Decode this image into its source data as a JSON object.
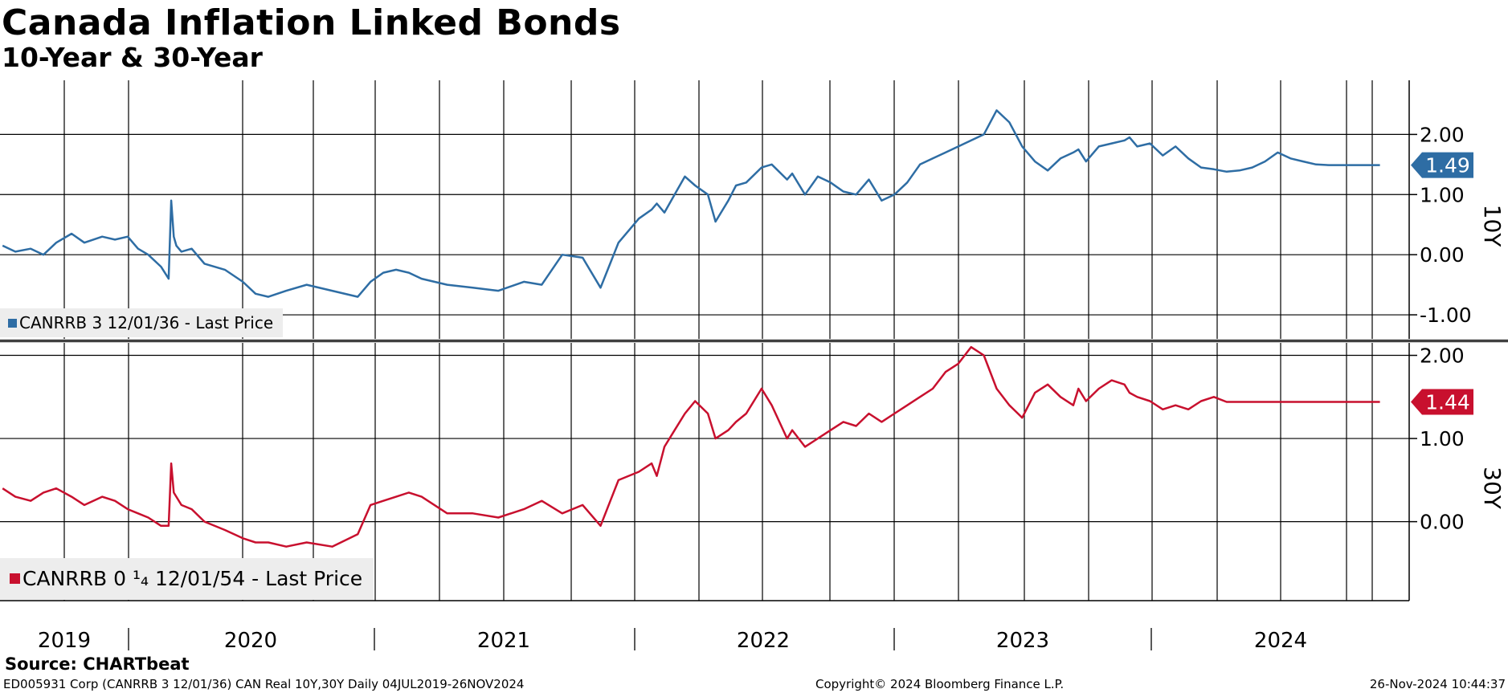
{
  "header": {
    "title": "Canada Inflation Linked Bonds",
    "subtitle": "10-Year & 30-Year"
  },
  "footer": {
    "source": "Source: CHARTbeat",
    "security": "ED005931 Corp (CANRRB 3 12/01/36) CAN Real 10Y,30Y  Daily 04JUL2019-26NOV2024",
    "copyright": "Copyright© 2024 Bloomberg Finance L.P.",
    "timestamp": "26-Nov-2024 10:44:37"
  },
  "chart_data": [
    {
      "type": "line",
      "panel": "10Y",
      "axis_label": "10Y",
      "legend": "CANRRB 3 12/01/36 - Last Price",
      "color": "#2e6da4",
      "last_value_label": "1.49",
      "ylim": [
        -1.4,
        2.9
      ],
      "yticks": [
        -1.0,
        0.0,
        1.0,
        2.0
      ],
      "ytick_labels": [
        "-1.00",
        "0.00",
        "1.00",
        "2.00"
      ],
      "xlim": [
        2019.5,
        2024.92
      ],
      "year_labels": [
        "2019",
        "2020",
        "2021",
        "2022",
        "2023",
        "2024"
      ],
      "x": [
        2019.51,
        2019.56,
        2019.62,
        2019.67,
        2019.72,
        2019.78,
        2019.83,
        2019.9,
        2019.95,
        2020.0,
        2020.04,
        2020.08,
        2020.13,
        2020.16,
        2020.17,
        2020.18,
        2020.19,
        2020.21,
        2020.25,
        2020.3,
        2020.38,
        2020.45,
        2020.5,
        2020.55,
        2020.62,
        2020.7,
        2020.8,
        2020.9,
        2020.95,
        2021.0,
        2021.05,
        2021.1,
        2021.15,
        2021.25,
        2021.35,
        2021.45,
        2021.55,
        2021.62,
        2021.7,
        2021.78,
        2021.85,
        2021.92,
        2022.0,
        2022.05,
        2022.07,
        2022.1,
        2022.14,
        2022.18,
        2022.22,
        2022.27,
        2022.3,
        2022.35,
        2022.38,
        2022.42,
        2022.48,
        2022.52,
        2022.58,
        2022.6,
        2022.65,
        2022.7,
        2022.75,
        2022.8,
        2022.85,
        2022.9,
        2022.95,
        2023.0,
        2023.05,
        2023.1,
        2023.15,
        2023.2,
        2023.25,
        2023.3,
        2023.35,
        2023.4,
        2023.45,
        2023.5,
        2023.55,
        2023.6,
        2023.65,
        2023.7,
        2023.72,
        2023.75,
        2023.8,
        2023.85,
        2023.9,
        2023.92,
        2023.95,
        2024.0,
        2024.05,
        2024.1,
        2024.15,
        2024.2,
        2024.25,
        2024.3,
        2024.35,
        2024.4,
        2024.45,
        2024.5,
        2024.55,
        2024.6,
        2024.65,
        2024.7,
        2024.75,
        2024.8,
        2024.85,
        2024.88,
        2024.9
      ],
      "y": [
        0.15,
        0.05,
        0.1,
        0.0,
        0.2,
        0.35,
        0.2,
        0.3,
        0.25,
        0.3,
        0.1,
        0.0,
        -0.2,
        -0.4,
        0.9,
        0.3,
        0.15,
        0.05,
        0.1,
        -0.15,
        -0.25,
        -0.45,
        -0.65,
        -0.7,
        -0.6,
        -0.5,
        -0.6,
        -0.7,
        -0.45,
        -0.3,
        -0.25,
        -0.3,
        -0.4,
        -0.5,
        -0.55,
        -0.6,
        -0.45,
        -0.5,
        0.0,
        -0.05,
        -0.55,
        0.2,
        0.6,
        0.75,
        0.85,
        0.7,
        1.0,
        1.3,
        1.15,
        1.0,
        0.55,
        0.9,
        1.15,
        1.2,
        1.45,
        1.5,
        1.25,
        1.35,
        1.0,
        1.3,
        1.2,
        1.05,
        1.0,
        1.25,
        0.9,
        1.0,
        1.2,
        1.5,
        1.6,
        1.7,
        1.8,
        1.9,
        2.0,
        2.4,
        2.2,
        1.8,
        1.55,
        1.4,
        1.6,
        1.7,
        1.75,
        1.55,
        1.8,
        1.85,
        1.9,
        1.95,
        1.8,
        1.85,
        1.65,
        1.8,
        1.6,
        1.45,
        1.42,
        1.38,
        1.4,
        1.45,
        1.55,
        1.7,
        1.6,
        1.55,
        1.5,
        1.49,
        1.49,
        1.49,
        1.49,
        1.49,
        1.49
      ]
    },
    {
      "type": "line",
      "panel": "30Y",
      "axis_label": "30Y",
      "legend": "CANRRB 0 ¼ 12/01/54 - Last Price",
      "legend_display": "CANRRB 0 ¹₄ 12/01/54 - Last Price",
      "color": "#c8102e",
      "last_value_label": "1.44",
      "ylim": [
        -0.95,
        2.15
      ],
      "yticks": [
        0.0,
        1.0,
        2.0
      ],
      "ytick_labels": [
        "0.00",
        "1.00",
        "2.00"
      ],
      "xlim": [
        2019.5,
        2024.92
      ],
      "x": [
        2019.51,
        2019.56,
        2019.62,
        2019.67,
        2019.72,
        2019.78,
        2019.83,
        2019.9,
        2019.95,
        2020.0,
        2020.04,
        2020.08,
        2020.13,
        2020.16,
        2020.17,
        2020.18,
        2020.19,
        2020.21,
        2020.25,
        2020.3,
        2020.38,
        2020.45,
        2020.5,
        2020.55,
        2020.62,
        2020.7,
        2020.8,
        2020.9,
        2020.95,
        2021.0,
        2021.05,
        2021.1,
        2021.15,
        2021.25,
        2021.35,
        2021.45,
        2021.55,
        2021.62,
        2021.7,
        2021.78,
        2021.85,
        2021.92,
        2022.0,
        2022.05,
        2022.07,
        2022.1,
        2022.14,
        2022.18,
        2022.22,
        2022.27,
        2022.3,
        2022.35,
        2022.38,
        2022.42,
        2022.48,
        2022.52,
        2022.58,
        2022.6,
        2022.65,
        2022.7,
        2022.75,
        2022.8,
        2022.85,
        2022.9,
        2022.95,
        2023.0,
        2023.05,
        2023.1,
        2023.15,
        2023.2,
        2023.25,
        2023.3,
        2023.35,
        2023.4,
        2023.45,
        2023.5,
        2023.55,
        2023.6,
        2023.65,
        2023.7,
        2023.72,
        2023.75,
        2023.8,
        2023.85,
        2023.9,
        2023.92,
        2023.95,
        2024.0,
        2024.05,
        2024.1,
        2024.15,
        2024.2,
        2024.25,
        2024.3,
        2024.35,
        2024.4,
        2024.45,
        2024.5,
        2024.55,
        2024.6,
        2024.65,
        2024.7,
        2024.75,
        2024.8,
        2024.85,
        2024.88,
        2024.9
      ],
      "y": [
        0.4,
        0.3,
        0.25,
        0.35,
        0.4,
        0.3,
        0.2,
        0.3,
        0.25,
        0.15,
        0.1,
        0.05,
        -0.05,
        -0.05,
        0.7,
        0.35,
        0.3,
        0.2,
        0.15,
        0.0,
        -0.1,
        -0.2,
        -0.25,
        -0.25,
        -0.3,
        -0.25,
        -0.3,
        -0.15,
        0.2,
        0.25,
        0.3,
        0.35,
        0.3,
        0.1,
        0.1,
        0.05,
        0.15,
        0.25,
        0.1,
        0.2,
        -0.05,
        0.5,
        0.6,
        0.7,
        0.55,
        0.9,
        1.1,
        1.3,
        1.45,
        1.3,
        1.0,
        1.1,
        1.2,
        1.3,
        1.6,
        1.4,
        1.0,
        1.1,
        0.9,
        1.0,
        1.1,
        1.2,
        1.15,
        1.3,
        1.2,
        1.3,
        1.4,
        1.5,
        1.6,
        1.8,
        1.9,
        2.1,
        2.0,
        1.6,
        1.4,
        1.25,
        1.55,
        1.65,
        1.5,
        1.4,
        1.6,
        1.45,
        1.6,
        1.7,
        1.65,
        1.55,
        1.5,
        1.45,
        1.35,
        1.4,
        1.35,
        1.45,
        1.5,
        1.44,
        1.44,
        1.44,
        1.44,
        1.44,
        1.44,
        1.44,
        1.44,
        1.44,
        1.44,
        1.44,
        1.44,
        1.44,
        1.44
      ]
    }
  ]
}
